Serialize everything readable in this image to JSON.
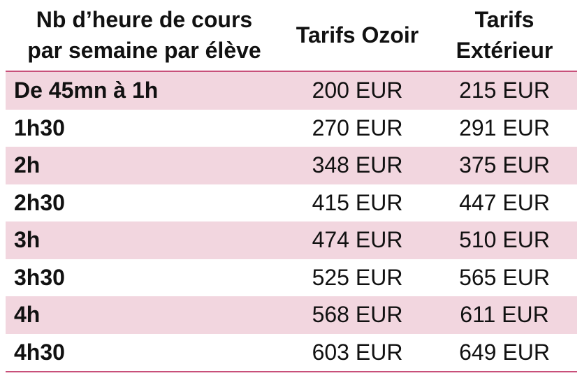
{
  "table": {
    "headers": {
      "col1": "Nb d’heure de cours\npar semaine par élève",
      "col2": "Tarifs Ozoir",
      "col3": "Tarifs\nExtérieur"
    },
    "rows": [
      {
        "duration": "De 45mn à 1h",
        "ozoir": "200 EUR",
        "exterieur": "215 EUR"
      },
      {
        "duration": "1h30",
        "ozoir": "270 EUR",
        "exterieur": "291 EUR"
      },
      {
        "duration": "2h",
        "ozoir": "348 EUR",
        "exterieur": "375 EUR"
      },
      {
        "duration": "2h30",
        "ozoir": "415 EUR",
        "exterieur": "447 EUR"
      },
      {
        "duration": "3h",
        "ozoir": "474 EUR",
        "exterieur": "510 EUR"
      },
      {
        "duration": "3h30",
        "ozoir": "525 EUR",
        "exterieur": "565 EUR"
      },
      {
        "duration": "4h",
        "ozoir": "568 EUR",
        "exterieur": "611 EUR"
      },
      {
        "duration": "4h30",
        "ozoir": "603 EUR",
        "exterieur": "649 EUR"
      }
    ]
  },
  "colors": {
    "band": "#f2d6df",
    "rule": "#c8507a",
    "text": "#111111"
  }
}
